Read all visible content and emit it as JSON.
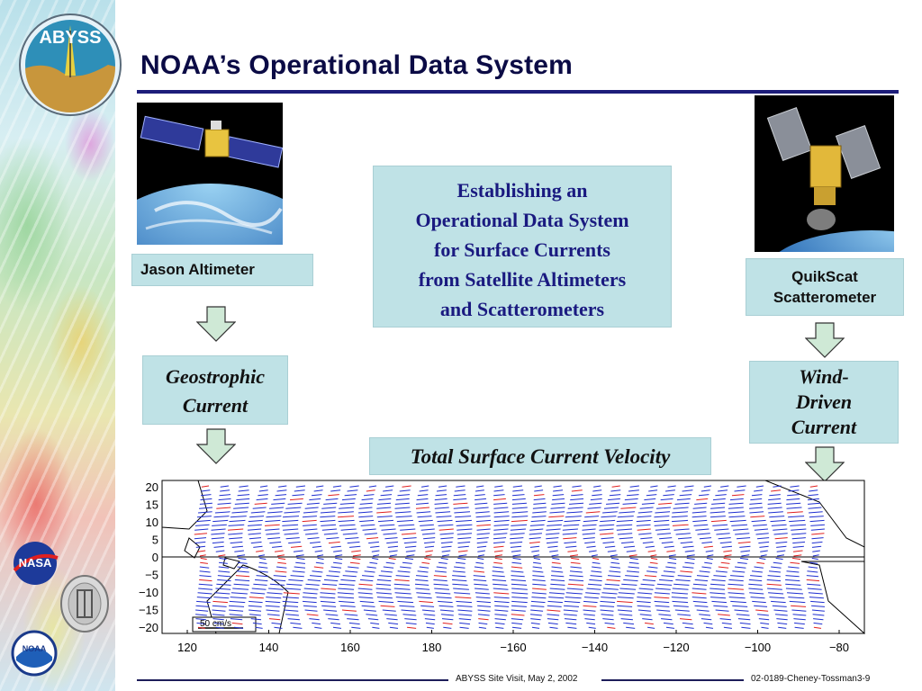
{
  "slide": {
    "title": "NOAA’s Operational Data System",
    "logo_text": "ABYSS",
    "jason_label": "Jason Altimeter",
    "quikscat_label_lines": [
      "QuikScat",
      "Scatterometer"
    ],
    "center_box_lines": [
      "Establishing an",
      "Operational Data System",
      "for Surface Currents",
      "from Satellite Altimeters",
      "and Scatterometers"
    ],
    "geostrophic_lines": [
      "Geostrophic",
      "Current"
    ],
    "wind_driven_lines": [
      "Wind-",
      "Driven",
      "Current"
    ],
    "total_label": "Total Surface Current Velocity",
    "footer_center": "ABYSS Site Visit, May 2, 2002",
    "footer_right": "02-0189-Cheney-Tossman3-9",
    "nasa_text": "NASA",
    "noaa_text": "NOAA"
  },
  "colors": {
    "title": "#0b0b45",
    "rule": "#1d1d7a",
    "box_fill": "#bfe2e6",
    "center_text": "#1a1a80",
    "arrow_fill": "#cfe9d6",
    "vector_blue": "#1f2fd0",
    "vector_red": "#e02020"
  },
  "icons": {
    "arrows": "down-arrow-icon",
    "logos": [
      "abyss-logo",
      "nasa-logo",
      "jhu-logo",
      "noaa-logo"
    ]
  },
  "chart_data": {
    "type": "scatter",
    "description_visible": "vector map of surface current velocity",
    "x_ticks": [
      "120",
      "140",
      "160",
      "180",
      "−160",
      "−140",
      "−120",
      "−100",
      "−80"
    ],
    "y_ticks": [
      "20",
      "15",
      "10",
      "5",
      "0",
      "−5",
      "−10",
      "−15",
      "−20"
    ],
    "x_range": [
      120,
      290
    ],
    "y_range": [
      -20,
      20
    ],
    "scale_label": "50 cm/s",
    "grid": false
  }
}
